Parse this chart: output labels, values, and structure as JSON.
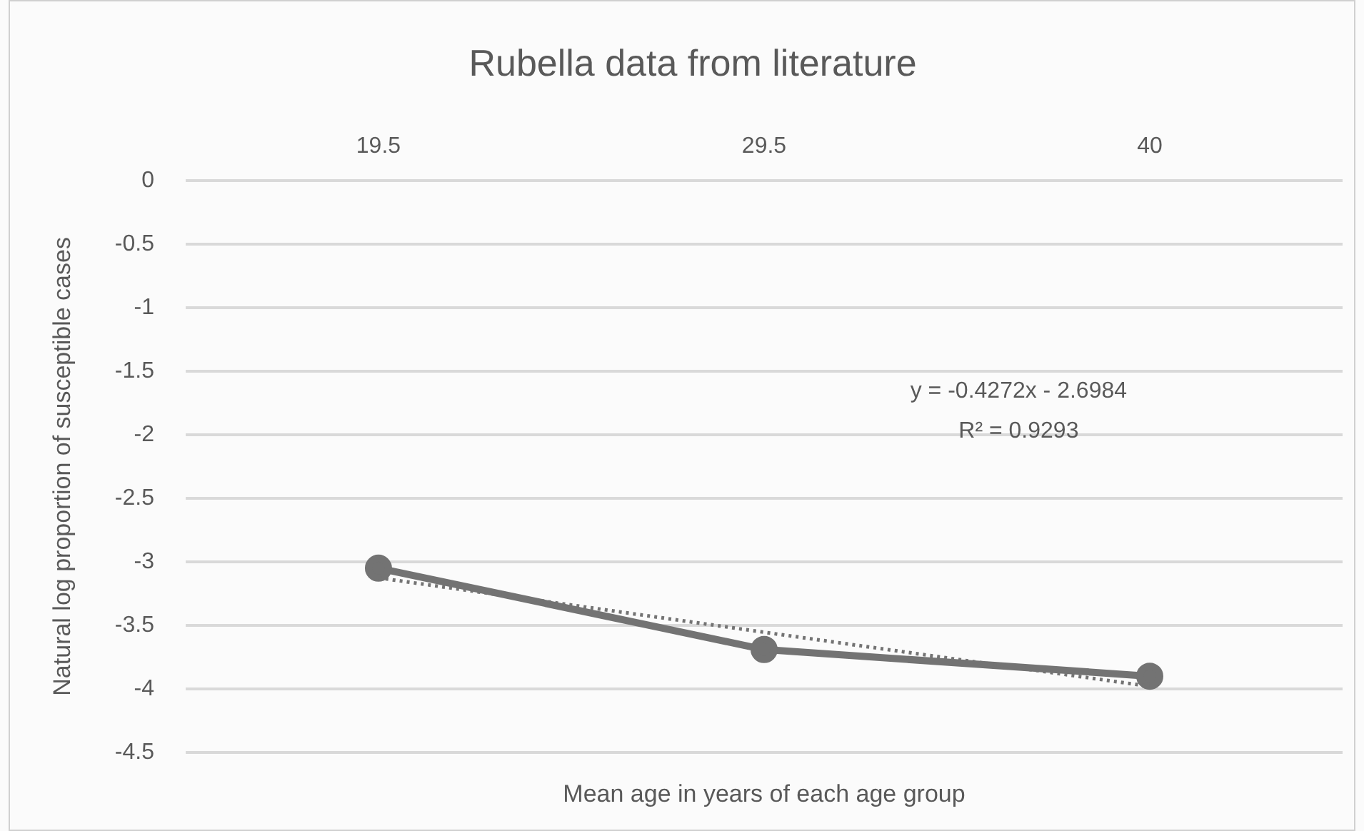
{
  "chart_data": {
    "type": "line",
    "title": "Rubella data from literature",
    "xlabel": "Mean age in years of each age group",
    "ylabel": "Natural log proportion of susceptible cases",
    "categories": [
      "19.5",
      "29.5",
      "40"
    ],
    "series": [
      {
        "color": "#737373",
        "values": [
          -3.05,
          -3.69,
          -3.9
        ],
        "marker": "circle",
        "line_style": "solid"
      },
      {
        "type": "line",
        "color": "#737373",
        "values": [
          -3.126,
          -3.554,
          -3.98
        ],
        "marker": "none",
        "line_style": "dotted"
      }
    ],
    "ylim": [
      -4.5,
      0
    ],
    "yticks": [
      0,
      -0.5,
      -1,
      -1.5,
      -2,
      -2.5,
      -3,
      -3.5,
      -4,
      -4.5
    ],
    "grid": "y",
    "legend": false,
    "annotations": [
      "y = -0.4272x - 2.6984",
      "R² = 0.9293"
    ]
  }
}
